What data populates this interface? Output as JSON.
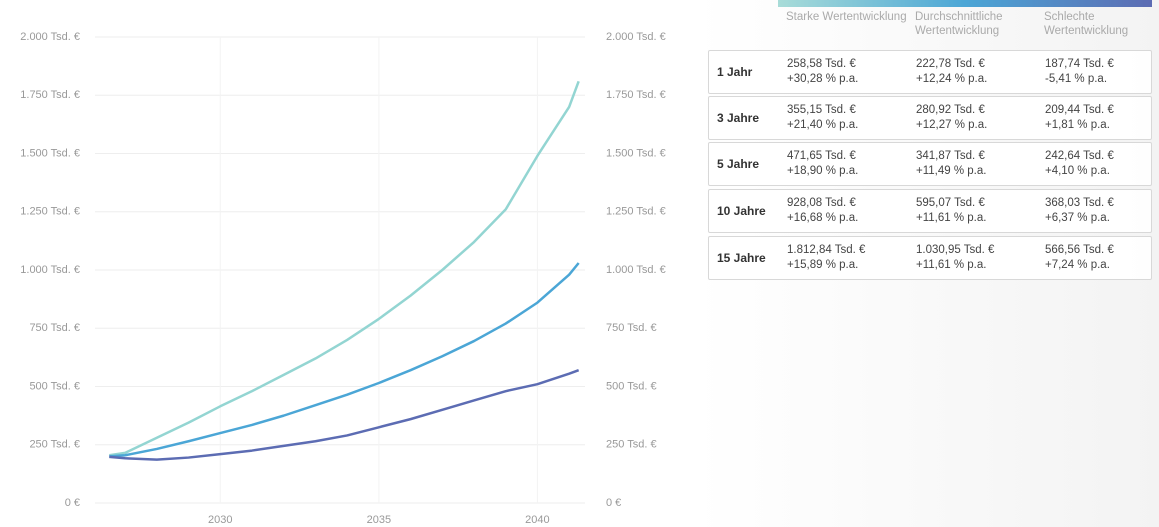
{
  "chart_data": {
    "type": "line",
    "x": [
      2026.5,
      2027,
      2028,
      2029,
      2030,
      2031,
      2032,
      2033,
      2034,
      2035,
      2036,
      2037,
      2038,
      2039,
      2040,
      2041,
      2041.3
    ],
    "series": [
      {
        "color": "#93d5d2",
        "values": [
          205,
          215,
          280,
          345,
          415,
          480,
          550,
          620,
          700,
          790,
          890,
          1000,
          1120,
          1260,
          1490,
          1700,
          1810
        ]
      },
      {
        "color": "#4ba6d6",
        "values": [
          200,
          205,
          232,
          265,
          300,
          335,
          375,
          420,
          465,
          515,
          570,
          630,
          695,
          770,
          860,
          980,
          1030
        ]
      },
      {
        "color": "#5c6cb3",
        "values": [
          198,
          192,
          186,
          195,
          210,
          225,
          245,
          265,
          290,
          325,
          360,
          400,
          440,
          480,
          510,
          555,
          570
        ]
      }
    ],
    "xlim": [
      2026.05,
      2041.5
    ],
    "xticks": [
      2030,
      2035,
      2040
    ],
    "ylim": [
      0,
      2000
    ],
    "yticks": [
      {
        "value": 0,
        "label": "0 €"
      },
      {
        "value": 250,
        "label": "250 Tsd. €"
      },
      {
        "value": 500,
        "label": "500 Tsd. €"
      },
      {
        "value": 750,
        "label": "750 Tsd. €"
      },
      {
        "value": 1000,
        "label": "1.000 Tsd. €"
      },
      {
        "value": 1250,
        "label": "1.250 Tsd. €"
      },
      {
        "value": 1500,
        "label": "1.500 Tsd. €"
      },
      {
        "value": 1750,
        "label": "1.750 Tsd. €"
      },
      {
        "value": 2000,
        "label": "2.000 Tsd. €"
      }
    ],
    "y2lim": [
      0,
      2000
    ],
    "y2ticks": [
      {
        "value": 0,
        "label": "0 €"
      },
      {
        "value": 250,
        "label": "250 Tsd. €"
      },
      {
        "value": 500,
        "label": "500 Tsd. €"
      },
      {
        "value": 750,
        "label": "750 Tsd. €"
      },
      {
        "value": 1000,
        "label": "1.000 Tsd. €"
      },
      {
        "value": 1250,
        "label": "1.250 Tsd. €"
      },
      {
        "value": 1500,
        "label": "1.500 Tsd. €"
      },
      {
        "value": 1750,
        "label": "1.750 Tsd. €"
      },
      {
        "value": 2000,
        "label": "2.000 Tsd. €"
      }
    ],
    "grid": true
  },
  "table": {
    "headers": [
      "Starke Wertentwicklung",
      "Durchschnittliche Wertentwicklung",
      "Schlechte Wertentwicklung"
    ],
    "rows": [
      {
        "label": "1 Jahr",
        "cells": [
          [
            "258,58 Tsd. €",
            "+30,28 % p.a."
          ],
          [
            "222,78 Tsd. €",
            "+12,24 % p.a."
          ],
          [
            "187,74 Tsd. €",
            "-5,41 % p.a."
          ]
        ]
      },
      {
        "label": "3 Jahre",
        "cells": [
          [
            "355,15 Tsd. €",
            "+21,40 % p.a."
          ],
          [
            "280,92 Tsd. €",
            "+12,27 % p.a."
          ],
          [
            "209,44 Tsd. €",
            "+1,81 % p.a."
          ]
        ]
      },
      {
        "label": "5 Jahre",
        "cells": [
          [
            "471,65 Tsd. €",
            "+18,90 % p.a."
          ],
          [
            "341,87 Tsd. €",
            "+11,49 % p.a."
          ],
          [
            "242,64 Tsd. €",
            "+4,10 % p.a."
          ]
        ]
      },
      {
        "label": "10 Jahre",
        "cells": [
          [
            "928,08 Tsd. €",
            "+16,68 % p.a."
          ],
          [
            "595,07 Tsd. €",
            "+11,61 % p.a."
          ],
          [
            "368,03 Tsd. €",
            "+6,37 % p.a."
          ]
        ]
      },
      {
        "label": "15 Jahre",
        "cells": [
          [
            "1.812,84 Tsd. €",
            "+15,89 % p.a."
          ],
          [
            "1.030,95 Tsd. €",
            "+11,61 % p.a."
          ],
          [
            "566,56 Tsd. €",
            "+7,24 % p.a."
          ]
        ]
      }
    ]
  }
}
